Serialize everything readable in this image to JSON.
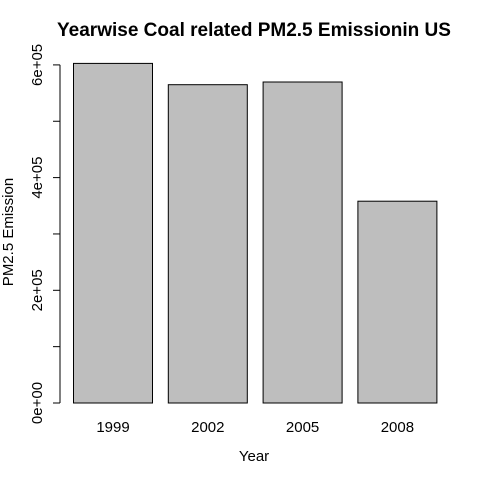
{
  "chart_data": {
    "type": "bar",
    "title": "Yearwise Coal related PM2.5 Emissionin US",
    "xlabel": "Year",
    "ylabel": "PM2.5 Emission",
    "categories": [
      "1999",
      "2002",
      "2005",
      "2008"
    ],
    "values": [
      602624,
      564940,
      569655,
      358084
    ],
    "ylim": [
      0,
      630000
    ],
    "y_ticks": [
      {
        "value": 0,
        "label": "0e+00"
      },
      {
        "value": 200000,
        "label": "2e+05"
      },
      {
        "value": 400000,
        "label": "4e+05"
      },
      {
        "value": 600000,
        "label": "6e+05"
      }
    ],
    "y_minor_ticks": [
      100000,
      300000,
      500000
    ],
    "grid": false,
    "legend": "none",
    "colors": {
      "bar_fill": "#bebebe",
      "bar_stroke": "#000000",
      "axis": "#000000",
      "text": "#000000"
    }
  }
}
